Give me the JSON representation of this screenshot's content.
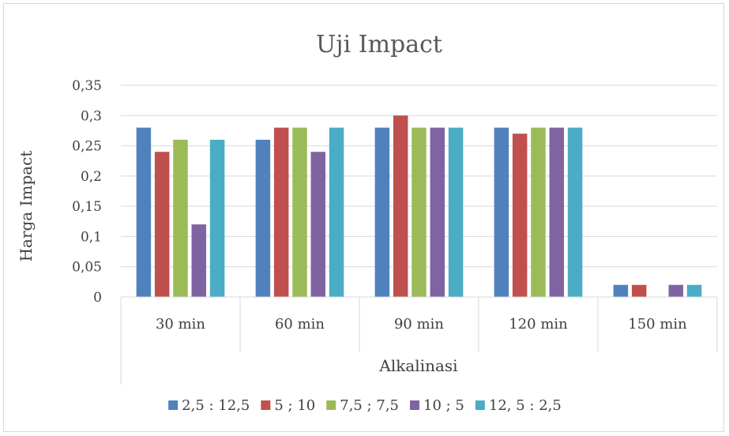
{
  "chart_data": {
    "type": "bar",
    "title": "Uji Impact",
    "xlabel": "Alkalinasi",
    "ylabel": "Harga Impact",
    "categories": [
      "30 min",
      "60 min",
      "90 min",
      "120 min",
      "150 min"
    ],
    "y_ticks": [
      "0",
      "0,05",
      "0,1",
      "0,15",
      "0,2",
      "0,25",
      "0,3",
      "0,35"
    ],
    "ylim": [
      0,
      0.35
    ],
    "grid": true,
    "legend_position": "bottom",
    "series": [
      {
        "name": "2,5 : 12,5",
        "color": "#4f81bd",
        "values": [
          0.28,
          0.26,
          0.28,
          0.28,
          0.02
        ]
      },
      {
        "name": "5 ; 10",
        "color": "#c0504d",
        "values": [
          0.24,
          0.28,
          0.3,
          0.27,
          0.02
        ]
      },
      {
        "name": "7,5 ; 7,5",
        "color": "#9bbb59",
        "values": [
          0.26,
          0.28,
          0.28,
          0.28,
          0
        ]
      },
      {
        "name": "10 ; 5",
        "color": "#8064a2",
        "values": [
          0.12,
          0.24,
          0.28,
          0.28,
          0.02
        ]
      },
      {
        "name": "12, 5 : 2,5",
        "color": "#4bacc6",
        "values": [
          0.26,
          0.28,
          0.28,
          0.28,
          0.02
        ]
      }
    ]
  }
}
